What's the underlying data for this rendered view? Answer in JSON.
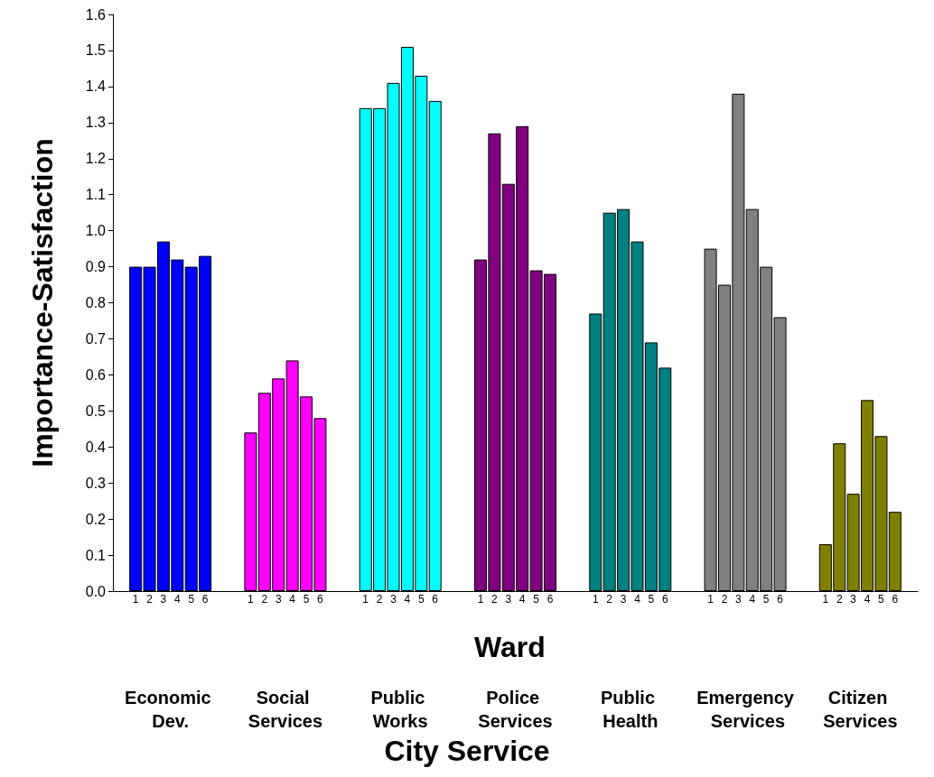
{
  "chart_data": {
    "type": "bar",
    "title": "City Service",
    "xlabel": "Ward",
    "ylabel": "Importance-Satisfaction",
    "categories": [
      "Economic Dev.",
      "Social Services",
      "Public Works",
      "Police Services",
      "Public Health",
      "Emergency Services",
      "Citizen Services"
    ],
    "series": [
      {
        "name": "1",
        "colors": [
          "#0000ff",
          "#ff00ff",
          "#00ffff",
          "#800080",
          "#008080",
          "#808080",
          "#808000"
        ],
        "values": [
          0.9,
          0.44,
          1.34,
          0.92,
          0.77,
          0.95,
          0.13
        ]
      },
      {
        "name": "2",
        "colors": [
          "#0000ff",
          "#ff00ff",
          "#00ffff",
          "#800080",
          "#008080",
          "#808080",
          "#808000"
        ],
        "values": [
          0.9,
          0.55,
          1.34,
          1.27,
          1.05,
          0.85,
          0.41
        ]
      },
      {
        "name": "3",
        "colors": [
          "#0000ff",
          "#ff00ff",
          "#00ffff",
          "#800080",
          "#008080",
          "#808080",
          "#808000"
        ],
        "values": [
          0.97,
          0.59,
          1.41,
          1.13,
          1.06,
          1.38,
          0.27
        ]
      },
      {
        "name": "4",
        "colors": [
          "#0000ff",
          "#ff00ff",
          "#00ffff",
          "#800080",
          "#008080",
          "#808080",
          "#808000"
        ],
        "values": [
          0.92,
          0.64,
          1.51,
          1.29,
          0.97,
          1.06,
          0.53
        ]
      },
      {
        "name": "5",
        "colors": [
          "#0000ff",
          "#ff00ff",
          "#00ffff",
          "#800080",
          "#008080",
          "#808080",
          "#808000"
        ],
        "values": [
          0.9,
          0.54,
          1.43,
          0.89,
          0.69,
          0.9,
          0.43
        ]
      },
      {
        "name": "6",
        "colors": [
          "#0000ff",
          "#ff00ff",
          "#00ffff",
          "#800080",
          "#008080",
          "#808080",
          "#808000"
        ],
        "values": [
          0.93,
          0.48,
          1.36,
          0.88,
          0.62,
          0.76,
          0.22
        ]
      }
    ],
    "ylim": [
      0,
      1.6
    ],
    "yticks": [
      {
        "value": 0,
        "label": "0.0"
      },
      0.1,
      0.2,
      0.3,
      0.4,
      0.5,
      0.6,
      0.7,
      0.8,
      0.9,
      {
        "value": 1,
        "label": "1.0"
      },
      1.1,
      1.2,
      1.3,
      1.4,
      1.5,
      1.6
    ],
    "grid": false,
    "legend": false
  }
}
